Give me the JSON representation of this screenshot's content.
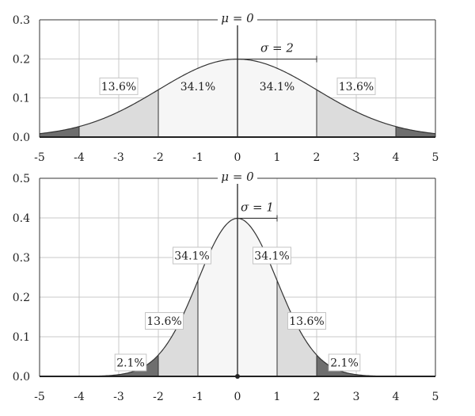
{
  "chart_data": [
    {
      "type": "area",
      "name": "top",
      "mu_label": "μ = 0",
      "sigma_label": "σ = 2",
      "mu": 0,
      "sigma": 2,
      "xlim": [
        -5,
        5
      ],
      "ylim": [
        0,
        0.3
      ],
      "xticks": [
        -5,
        -4,
        -3,
        -2,
        -1,
        0,
        1,
        2,
        3,
        4,
        5
      ],
      "xtick_labels": [
        "-5",
        "-4",
        "-3",
        "-2",
        "-1",
        "0",
        "1",
        "2",
        "3",
        "4",
        "5"
      ],
      "yticks": [
        0,
        0.1,
        0.2,
        0.3
      ],
      "ytick_labels": [
        "0.0",
        "0.1",
        "0.2",
        "0.3"
      ],
      "grid": true,
      "regions": [
        {
          "from": -5,
          "to": -4,
          "shade": "dark"
        },
        {
          "from": -4,
          "to": -2,
          "shade": "mid"
        },
        {
          "from": -2,
          "to": 2,
          "shade": "light"
        },
        {
          "from": 2,
          "to": 4,
          "shade": "mid"
        },
        {
          "from": 4,
          "to": 5,
          "shade": "dark"
        }
      ],
      "annotations": [
        {
          "text": "13.6%",
          "x": -3,
          "y": 0.13,
          "boxed": true
        },
        {
          "text": "34.1%",
          "x": -1,
          "y": 0.13,
          "boxed": false
        },
        {
          "text": "34.1%",
          "x": 1,
          "y": 0.13,
          "boxed": false
        },
        {
          "text": "13.6%",
          "x": 3,
          "y": 0.13,
          "boxed": true
        }
      ]
    },
    {
      "type": "area",
      "name": "bottom",
      "mu_label": "μ = 0",
      "sigma_label": "σ = 1",
      "mu": 0,
      "sigma": 1,
      "xlim": [
        -5,
        5
      ],
      "ylim": [
        0,
        0.5
      ],
      "xticks": [
        -5,
        -4,
        -3,
        -2,
        -1,
        0,
        1,
        2,
        3,
        4,
        5
      ],
      "xtick_labels": [
        "-5",
        "-4",
        "-3",
        "-2",
        "-1",
        "0",
        "1",
        "2",
        "3",
        "4",
        "5"
      ],
      "yticks": [
        0,
        0.1,
        0.2,
        0.3,
        0.4,
        0.5
      ],
      "ytick_labels": [
        "0.0",
        "0.1",
        "0.2",
        "0.3",
        "0.4",
        "0.5"
      ],
      "grid": true,
      "regions": [
        {
          "from": -5,
          "to": -2,
          "shade": "dark"
        },
        {
          "from": -2,
          "to": -1,
          "shade": "mid"
        },
        {
          "from": -1,
          "to": 1,
          "shade": "light"
        },
        {
          "from": 1,
          "to": 2,
          "shade": "mid"
        },
        {
          "from": 2,
          "to": 5,
          "shade": "dark"
        }
      ],
      "annotations": [
        {
          "text": "34.1%",
          "x": -1.15,
          "y": 0.305,
          "boxed": true
        },
        {
          "text": "34.1%",
          "x": 0.87,
          "y": 0.305,
          "boxed": true
        },
        {
          "text": "13.6%",
          "x": -1.85,
          "y": 0.14,
          "boxed": true
        },
        {
          "text": "13.6%",
          "x": 1.75,
          "y": 0.14,
          "boxed": true
        },
        {
          "text": "2.1%",
          "x": -2.7,
          "y": 0.035,
          "boxed": true
        },
        {
          "text": "2.1%",
          "x": 2.7,
          "y": 0.035,
          "boxed": true
        }
      ]
    }
  ],
  "colors": {
    "light": "#f6f6f6",
    "mid": "#dcdcdc",
    "dark": "#6e6e6e",
    "grid": "#c8c8c8",
    "axis": "#222222",
    "curve": "#333333"
  }
}
